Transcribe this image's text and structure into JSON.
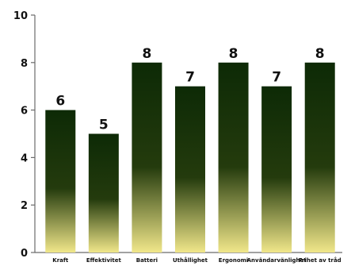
{
  "chart_data": {
    "type": "bar",
    "categories": [
      "Kraft",
      "Effektivitet",
      "Batteri",
      "Uthållighet",
      "Ergonomi",
      "Användarvänlighet",
      "Frihet av tråd"
    ],
    "values": [
      6,
      5,
      8,
      7,
      8,
      7,
      8
    ],
    "ylim": [
      0,
      10
    ],
    "yticks": [
      0,
      2,
      4,
      6,
      8,
      10
    ],
    "data_labels": true,
    "grid": false,
    "colors": {
      "bar_top": "#0d2a06",
      "bar_mid": "#243b0d",
      "bar_bottom": "#f1e78a",
      "axis": "#6b6b6b"
    }
  }
}
